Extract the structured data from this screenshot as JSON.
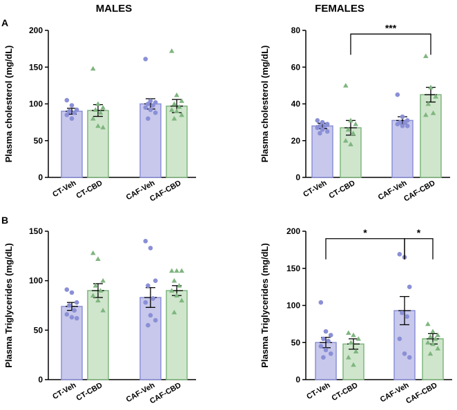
{
  "headings": {
    "males": "MALES",
    "females": "FEMALES"
  },
  "panel_letters": {
    "a": "A",
    "b": "B"
  },
  "colors": {
    "veh_fill": "#c8c8ec",
    "veh_stroke": "#8a8fd6",
    "veh_point": "#8a8fd6",
    "cbd_fill": "#cfe6cc",
    "cbd_stroke": "#7fb57f",
    "cbd_point": "#7fb57f",
    "axis": "#000000"
  },
  "chart_data": [
    {
      "id": "males-cholesterol",
      "type": "bar",
      "title": "",
      "xlabel": "",
      "ylabel": "Plasma cholesterol (mg/dL)",
      "ylim": [
        0,
        200
      ],
      "yticks": [
        0,
        50,
        100,
        150,
        200
      ],
      "categories": [
        "CT-Veh",
        "CT-CBD",
        "CAF-Veh",
        "CAF-CBD"
      ],
      "values": [
        90,
        91,
        100,
        97
      ],
      "errors": [
        4,
        8,
        7,
        9
      ],
      "points": [
        [
          105,
          98,
          92,
          90,
          88,
          85,
          80
        ],
        [
          148,
          100,
          95,
          92,
          88,
          80,
          70,
          68
        ],
        [
          161,
          104,
          102,
          100,
          98,
          95,
          92,
          88,
          80
        ],
        [
          172,
          112,
          104,
          100,
          96,
          92,
          90,
          85,
          80
        ]
      ],
      "significance": []
    },
    {
      "id": "females-cholesterol",
      "type": "bar",
      "title": "",
      "xlabel": "",
      "ylabel": "Plasma cholesterol (mg/dL)",
      "ylim": [
        0,
        80
      ],
      "yticks": [
        0,
        20,
        40,
        60,
        80
      ],
      "categories": [
        "CT-Veh",
        "CT-CBD",
        "CAF-Veh",
        "CAF-CBD"
      ],
      "values": [
        28,
        27,
        31,
        45
      ],
      "errors": [
        1.5,
        4,
        2,
        4
      ],
      "points": [
        [
          31,
          30,
          29,
          28,
          28,
          27,
          26,
          25,
          24
        ],
        [
          50,
          31,
          29,
          26,
          24,
          20,
          18
        ],
        [
          45,
          33,
          31,
          30,
          30,
          29,
          28,
          28
        ],
        [
          66,
          49,
          44,
          40,
          35,
          34
        ]
      ],
      "significance": [
        {
          "from": 1,
          "to": 3,
          "label": "***",
          "y": 78
        }
      ]
    },
    {
      "id": "males-triglycerides",
      "type": "bar",
      "title": "",
      "xlabel": "",
      "ylabel": "Plasma Triglycerides (mg/dL)",
      "ylim": [
        0,
        150
      ],
      "yticks": [
        0,
        50,
        100,
        150
      ],
      "categories": [
        "CT-Veh",
        "CT-CBD",
        "CAF-Veh",
        "CAF-CBD"
      ],
      "values": [
        74,
        90,
        83,
        90
      ],
      "errors": [
        4,
        7,
        10,
        5
      ],
      "points": [
        [
          91,
          88,
          78,
          75,
          70,
          66,
          63,
          62
        ],
        [
          128,
          122,
          100,
          95,
          90,
          85,
          80,
          70
        ],
        [
          140,
          133,
          100,
          95,
          82,
          78,
          65,
          60,
          55
        ],
        [
          110,
          110,
          110,
          100,
          95,
          90,
          85,
          80,
          68
        ]
      ],
      "significance": []
    },
    {
      "id": "females-triglycerides",
      "type": "bar",
      "title": "",
      "xlabel": "",
      "ylabel": "Plasma Triglycerides (mg/dL)",
      "ylim": [
        0,
        200
      ],
      "yticks": [
        0,
        50,
        100,
        150,
        200
      ],
      "categories": [
        "CT-Veh",
        "CT-CBD",
        "CAF-Veh",
        "CAF-CBD"
      ],
      "values": [
        50,
        48,
        93,
        55
      ],
      "errors": [
        7,
        7,
        19,
        7
      ],
      "points": [
        [
          104,
          65,
          60,
          55,
          52,
          45,
          40,
          35,
          30
        ],
        [
          63,
          60,
          55,
          50,
          38,
          30,
          20
        ],
        [
          169,
          165,
          125,
          90,
          85,
          55,
          35,
          30
        ],
        [
          75,
          65,
          60,
          58,
          55,
          50,
          48,
          42,
          35
        ]
      ],
      "significance": [
        {
          "from": 0,
          "to": 2,
          "label": "*",
          "y": 190
        },
        {
          "from": 2,
          "to": 3,
          "label": "*",
          "y": 190
        }
      ]
    }
  ]
}
